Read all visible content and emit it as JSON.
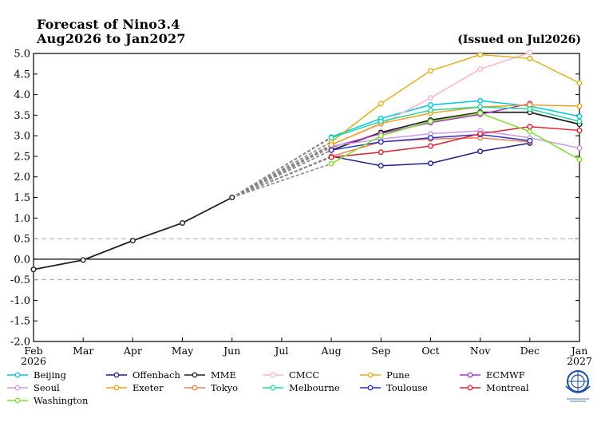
{
  "title": [
    "Forecast of Nino3.4",
    "Aug2026 to Jan2027"
  ],
  "issued": "(Issued on Jul2026)",
  "logo": "wmo-logo-icon",
  "chart_data": {
    "type": "line",
    "x_ticks": [
      {
        "label": "Feb",
        "sub": "2026"
      },
      {
        "label": "Mar",
        "sub": ""
      },
      {
        "label": "Apr",
        "sub": ""
      },
      {
        "label": "May",
        "sub": ""
      },
      {
        "label": "Jun",
        "sub": ""
      },
      {
        "label": "Jul",
        "sub": ""
      },
      {
        "label": "Aug",
        "sub": ""
      },
      {
        "label": "Sep",
        "sub": ""
      },
      {
        "label": "Oct",
        "sub": ""
      },
      {
        "label": "Nov",
        "sub": ""
      },
      {
        "label": "Dec",
        "sub": ""
      },
      {
        "label": "Jan",
        "sub": "2027"
      }
    ],
    "y_ticks": [
      "5.0",
      "4.5",
      "4.0",
      "3.5",
      "3.0",
      "2.5",
      "2.0",
      "1.5",
      "1.0",
      "0.5",
      "0.0",
      "-0.5",
      "-1.0",
      "-1.5",
      "-2.0"
    ],
    "ylim": [
      -2.0,
      5.0
    ],
    "reference_lines": [
      0.5,
      0.0,
      -0.5
    ],
    "observed": {
      "name": "",
      "color": "#222222",
      "x_start": 0,
      "values": [
        -0.25,
        -0.02,
        0.45,
        0.88,
        1.5
      ]
    },
    "forecast_x_start": 6,
    "series": [
      {
        "name": "Beijing",
        "color": "#00c8e0",
        "values": [
          2.97,
          3.42,
          3.75,
          3.85,
          3.72,
          3.47
        ]
      },
      {
        "name": "Offenbach",
        "color": "#1e1e8c",
        "values": [
          2.5,
          2.27,
          2.33,
          2.62,
          2.82,
          null
        ]
      },
      {
        "name": "MME",
        "color": "#222222",
        "values": [
          2.65,
          3.08,
          3.38,
          3.57,
          3.57,
          3.28
        ]
      },
      {
        "name": "CMCC",
        "color": "#ffb6c8",
        "values": [
          2.78,
          3.28,
          3.92,
          4.62,
          5.02,
          null
        ]
      },
      {
        "name": "Pune",
        "color": "#e0b020",
        "values": [
          2.85,
          3.78,
          4.58,
          4.97,
          4.88,
          4.28
        ]
      },
      {
        "name": "ECMWF",
        "color": "#b030c8",
        "values": [
          2.72,
          3.05,
          3.32,
          3.52,
          3.78,
          null
        ]
      },
      {
        "name": "Seoul",
        "color": "#c89ae8",
        "values": [
          2.75,
          2.92,
          3.05,
          3.12,
          2.95,
          2.7
        ]
      },
      {
        "name": "Exeter",
        "color": "#f0a020",
        "values": [
          2.78,
          3.3,
          3.55,
          3.7,
          3.75,
          3.72
        ]
      },
      {
        "name": "Tokyo",
        "color": "#e88050",
        "values": [
          2.5,
          2.85,
          2.92,
          2.95,
          2.85,
          null
        ]
      },
      {
        "name": "Melbourne",
        "color": "#20d8a0",
        "values": [
          2.95,
          3.35,
          3.62,
          3.7,
          3.65,
          3.35
        ]
      },
      {
        "name": "Toulouse",
        "color": "#3030c8",
        "values": [
          2.65,
          2.85,
          2.95,
          3.03,
          2.88,
          null
        ]
      },
      {
        "name": "Montreal",
        "color": "#e02030",
        "values": [
          2.48,
          2.6,
          2.75,
          3.05,
          3.22,
          3.13
        ]
      },
      {
        "name": "Washington",
        "color": "#80e030",
        "values": [
          2.32,
          3.0,
          3.35,
          3.55,
          3.1,
          2.42
        ]
      }
    ]
  }
}
